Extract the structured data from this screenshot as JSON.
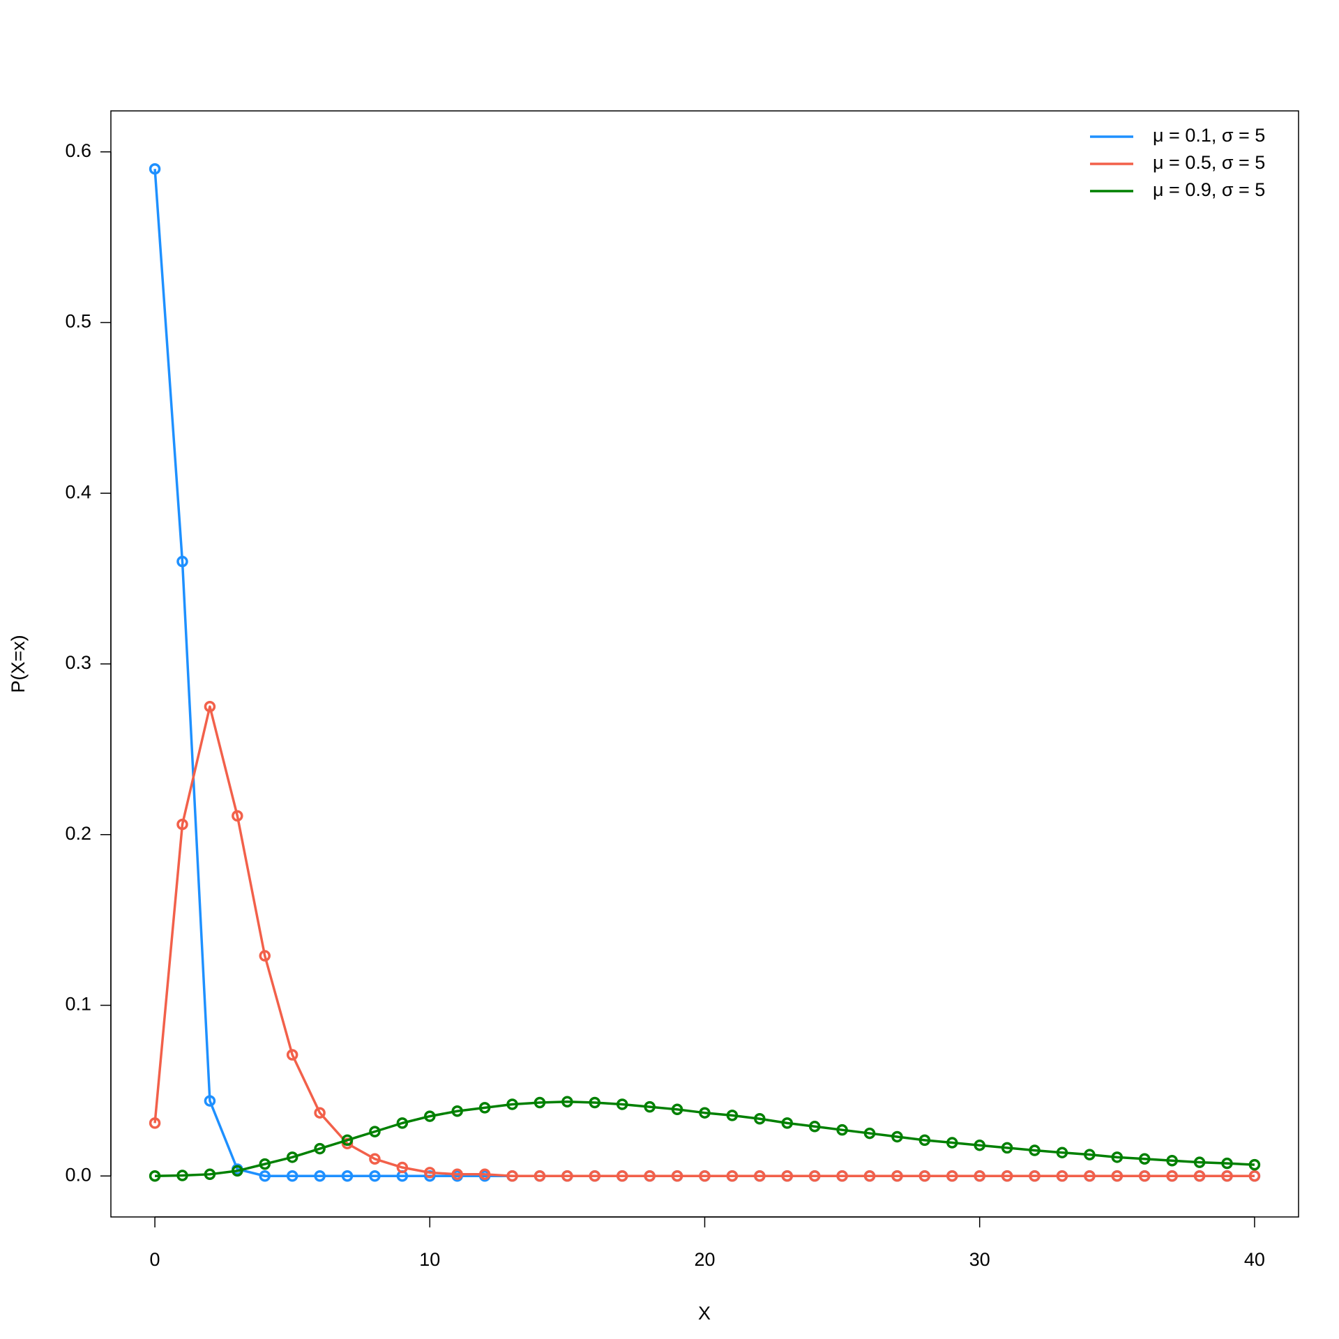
{
  "chart_data": {
    "type": "line",
    "xlabel": "X",
    "ylabel": "P(X=x)",
    "x": [
      0,
      1,
      2,
      3,
      4,
      5,
      6,
      7,
      8,
      9,
      10,
      11,
      12,
      13,
      14,
      15,
      16,
      17,
      18,
      19,
      20,
      21,
      22,
      23,
      24,
      25,
      26,
      27,
      28,
      29,
      30,
      31,
      32,
      33,
      34,
      35,
      36,
      37,
      38,
      39,
      40
    ],
    "series": [
      {
        "name": "μ = 0.1, σ = 5",
        "color": "#1e90ff",
        "values": [
          0.59,
          0.36,
          0.044,
          0.004,
          0,
          0,
          0,
          0,
          0,
          0,
          0,
          0,
          0,
          0,
          0,
          0,
          0,
          0,
          0,
          0,
          0,
          0,
          0,
          0,
          0,
          0,
          0,
          0,
          0,
          0,
          0,
          0,
          0,
          0,
          0,
          0,
          0,
          0,
          0,
          0,
          0
        ]
      },
      {
        "name": "μ = 0.5, σ = 5",
        "color": "#f2604a",
        "values": [
          0.031,
          0.206,
          0.275,
          0.211,
          0.129,
          0.071,
          0.037,
          0.019,
          0.01,
          0.005,
          0.002,
          0.001,
          0.001,
          0,
          0,
          0,
          0,
          0,
          0,
          0,
          0,
          0,
          0,
          0,
          0,
          0,
          0,
          0,
          0,
          0,
          0,
          0,
          0,
          0,
          0,
          0,
          0,
          0,
          0,
          0,
          0
        ]
      },
      {
        "name": "μ = 0.9, σ = 5",
        "color": "#008000",
        "values": [
          0,
          0.0003,
          0.001,
          0.003,
          0.007,
          0.011,
          0.016,
          0.021,
          0.026,
          0.031,
          0.035,
          0.038,
          0.04,
          0.042,
          0.043,
          0.0435,
          0.043,
          0.042,
          0.0405,
          0.039,
          0.037,
          0.0355,
          0.0335,
          0.031,
          0.029,
          0.027,
          0.025,
          0.023,
          0.021,
          0.0195,
          0.018,
          0.0165,
          0.015,
          0.0137,
          0.0125,
          0.011,
          0.01,
          0.009,
          0.008,
          0.0074,
          0.0066
        ]
      }
    ],
    "xlim": [
      -1.6,
      41.6
    ],
    "ylim": [
      -0.024,
      0.624
    ],
    "xticks": [
      0,
      10,
      20,
      30,
      40
    ],
    "yticks": [
      {
        "value": 0,
        "label": "0.0"
      },
      0.1,
      0.2,
      0.3,
      0.4,
      0.5,
      0.6
    ],
    "legend": "top-right",
    "grid": false
  }
}
